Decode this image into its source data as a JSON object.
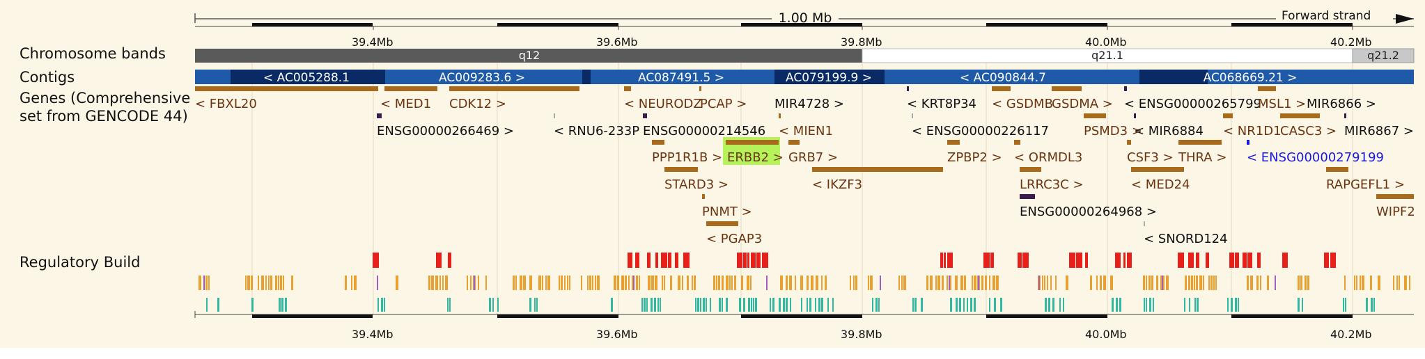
{
  "scale": {
    "span_label": "1.00 Mb",
    "strand_label": "Forward strand",
    "ticks": [
      "39.4Mb",
      "39.6Mb",
      "39.8Mb",
      "40.0Mb",
      "40.2Mb"
    ]
  },
  "tracks": {
    "chromosome_bands": "Chromosome bands",
    "contigs": "Contigs",
    "genes": "Genes (Comprehensive set from GENCODE 44)",
    "regulatory": "Regulatory Build"
  },
  "bands": [
    "q12",
    "q21.1",
    "q21.2"
  ],
  "contigs": [
    "< AC005288.1",
    "AC009283.6 >",
    "AC087491.5 >",
    "AC079199.9 >",
    "< AC090844.7",
    "AC068669.21 >"
  ],
  "genes": [
    "< FBXL20",
    "< MED1",
    "CDK12 >",
    "< NEURODZ",
    "PCAP >",
    "MIR4728 >",
    "< KRT8P34",
    "< GSDMB",
    "GSDMA >",
    "< ENSG00000265799",
    "MSL1 >",
    "MIR6866 >",
    "ENSG00000266469 >",
    "< RNU6-233P",
    "ENSG00000214546",
    "< MIEN1",
    "< ENSG00000226117",
    "PSMD3 >",
    "< MIR6884",
    "< NR1D1",
    "CASC3 >",
    "MIR6867 >",
    "PPP1R1B >",
    "ERBB2 >",
    "GRB7 >",
    "ZPBP2 >",
    "< ORMDL3",
    "CSF3 >",
    "THRA >",
    "< ENSG00000279199",
    "STARD3 >",
    "< IKZF3",
    "LRRC3C >",
    "< MED24",
    "RAPGEFL1 >",
    "PNMT >",
    "ENSG00000264968 >",
    "WIPF2",
    "< PGAP3",
    "< SNORD124"
  ],
  "colors": {
    "background": "#fcf6e6",
    "gene_protein_coding": "#a86a1c",
    "gene_ncrna": "#3a1d4d",
    "gene_highlight_bg": "#b6f25a",
    "gene_blue": "#1818e0",
    "contig_light": "#1e5aa8",
    "contig_dark": "#0a2a66",
    "band_gpos": "#5a5a5a",
    "band_gneg": "#ffffff",
    "band_light": "#c8c8c8",
    "reg_promoter": "#e8201c",
    "reg_enhancer": "#e8a030",
    "reg_ctcf": "#30b8a0",
    "reg_open": "#a060c0"
  }
}
